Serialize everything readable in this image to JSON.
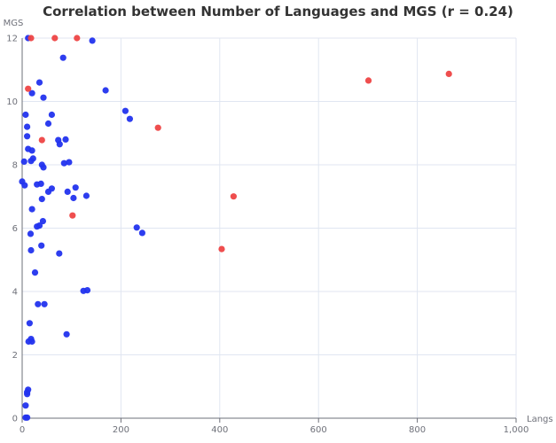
{
  "chart_data": {
    "type": "scatter",
    "title": "Correlation between Number of Languages and MGS (r = 0.24)",
    "xlabel": "Langs",
    "ylabel": "MGS",
    "xlim": [
      0,
      1000
    ],
    "ylim": [
      0,
      12
    ],
    "x_ticks": [
      0,
      200,
      400,
      600,
      800,
      1000
    ],
    "x_tick_labels": [
      "0",
      "200",
      "400",
      "600",
      "800",
      "1,000"
    ],
    "y_ticks": [
      0,
      2,
      4,
      6,
      8,
      10,
      12
    ],
    "grid": true,
    "legend": "none",
    "colors": {
      "blue": "#2233ee",
      "red": "#ee4444"
    },
    "series": [
      {
        "color": "blue",
        "points": [
          [
            12,
            12
          ],
          [
            142,
            11.92
          ],
          [
            83,
            11.38
          ],
          [
            35,
            10.6
          ],
          [
            43,
            10.12
          ],
          [
            20,
            10.26
          ],
          [
            169,
            10.35
          ],
          [
            209,
            9.7
          ],
          [
            218,
            9.45
          ],
          [
            7,
            9.58
          ],
          [
            60,
            9.58
          ],
          [
            10,
            9.2
          ],
          [
            53,
            9.3
          ],
          [
            10,
            8.9
          ],
          [
            88,
            8.8
          ],
          [
            73,
            8.78
          ],
          [
            76,
            8.65
          ],
          [
            12,
            8.5
          ],
          [
            20,
            8.45
          ],
          [
            22,
            8.2
          ],
          [
            18,
            8.12
          ],
          [
            4,
            8.1
          ],
          [
            85,
            8.05
          ],
          [
            95,
            8.08
          ],
          [
            40,
            8.0
          ],
          [
            43,
            7.92
          ],
          [
            0,
            7.47
          ],
          [
            5,
            7.35
          ],
          [
            30,
            7.38
          ],
          [
            38,
            7.4
          ],
          [
            108,
            7.28
          ],
          [
            60,
            7.25
          ],
          [
            53,
            7.15
          ],
          [
            92,
            7.15
          ],
          [
            130,
            7.02
          ],
          [
            104,
            6.95
          ],
          [
            40,
            6.92
          ],
          [
            20,
            6.6
          ],
          [
            42,
            6.22
          ],
          [
            35,
            6.08
          ],
          [
            30,
            6.05
          ],
          [
            232,
            6.02
          ],
          [
            243,
            5.85
          ],
          [
            17,
            5.82
          ],
          [
            39,
            5.45
          ],
          [
            18,
            5.3
          ],
          [
            75,
            5.2
          ],
          [
            26,
            4.6
          ],
          [
            132,
            4.04
          ],
          [
            124,
            4.02
          ],
          [
            32,
            3.6
          ],
          [
            45,
            3.6
          ],
          [
            15,
            3.0
          ],
          [
            90,
            2.65
          ],
          [
            18,
            2.5
          ],
          [
            13,
            2.42
          ],
          [
            20,
            2.42
          ],
          [
            12,
            0.9
          ],
          [
            10,
            0.82
          ],
          [
            10,
            0.76
          ],
          [
            7,
            0.4
          ],
          [
            7,
            0.02
          ],
          [
            10,
            0.02
          ]
        ]
      },
      {
        "color": "red",
        "points": [
          [
            18,
            12
          ],
          [
            66,
            12
          ],
          [
            111,
            12
          ],
          [
            12,
            10.4
          ],
          [
            40,
            8.78
          ],
          [
            275,
            9.17
          ],
          [
            428,
            7.0
          ],
          [
            102,
            6.4
          ],
          [
            404,
            5.34
          ],
          [
            701,
            10.66
          ],
          [
            864,
            10.87
          ]
        ]
      }
    ]
  }
}
